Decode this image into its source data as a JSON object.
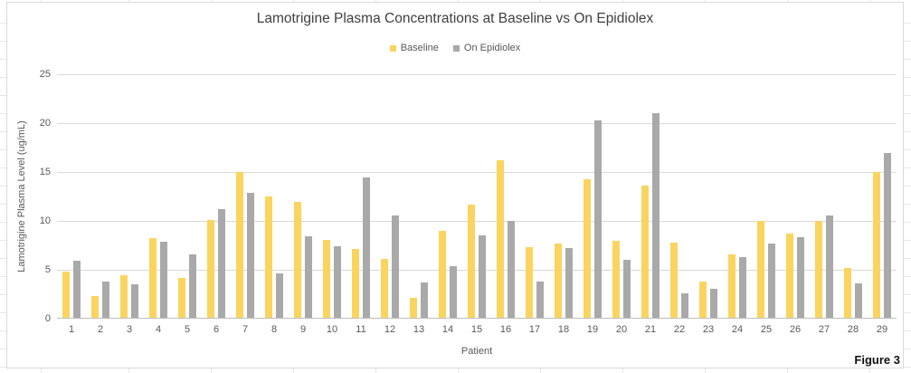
{
  "figure_label": "Figure 3",
  "chart_data": {
    "type": "bar",
    "title": "Lamotrigine Plasma Concentrations at Baseline vs On Epidiolex",
    "xlabel": "Patient",
    "ylabel": "Lamotrigine Plasma Level (ug/mL)",
    "ylim": [
      0,
      25
    ],
    "yticks": [
      0,
      5,
      10,
      15,
      20,
      25
    ],
    "grid": true,
    "legend_position": "top-center",
    "categories": [
      "1",
      "2",
      "3",
      "4",
      "5",
      "6",
      "7",
      "8",
      "9",
      "10",
      "11",
      "12",
      "13",
      "14",
      "15",
      "16",
      "17",
      "18",
      "19",
      "20",
      "21",
      "22",
      "23",
      "24",
      "25",
      "26",
      "27",
      "28",
      "29"
    ],
    "series": [
      {
        "name": "Baseline",
        "color": "#FBD45F",
        "values": [
          4.8,
          2.3,
          4.4,
          8.2,
          4.2,
          10.1,
          15.0,
          12.5,
          11.9,
          8.1,
          7.1,
          6.1,
          2.1,
          9.0,
          11.7,
          16.2,
          7.3,
          7.7,
          14.3,
          8.0,
          13.6,
          7.8,
          3.8,
          6.6,
          10.0,
          8.7,
          10.0,
          5.2,
          15.0
        ]
      },
      {
        "name": "On Epidiolex",
        "color": "#A9A9A9",
        "values": [
          5.9,
          3.8,
          3.5,
          7.9,
          6.6,
          11.2,
          12.9,
          4.6,
          8.4,
          7.4,
          14.4,
          10.6,
          3.7,
          5.4,
          8.5,
          10.0,
          3.8,
          7.2,
          20.3,
          6.0,
          21.0,
          2.6,
          3.1,
          6.3,
          7.7,
          8.3,
          10.6,
          3.6,
          16.9
        ]
      }
    ]
  }
}
